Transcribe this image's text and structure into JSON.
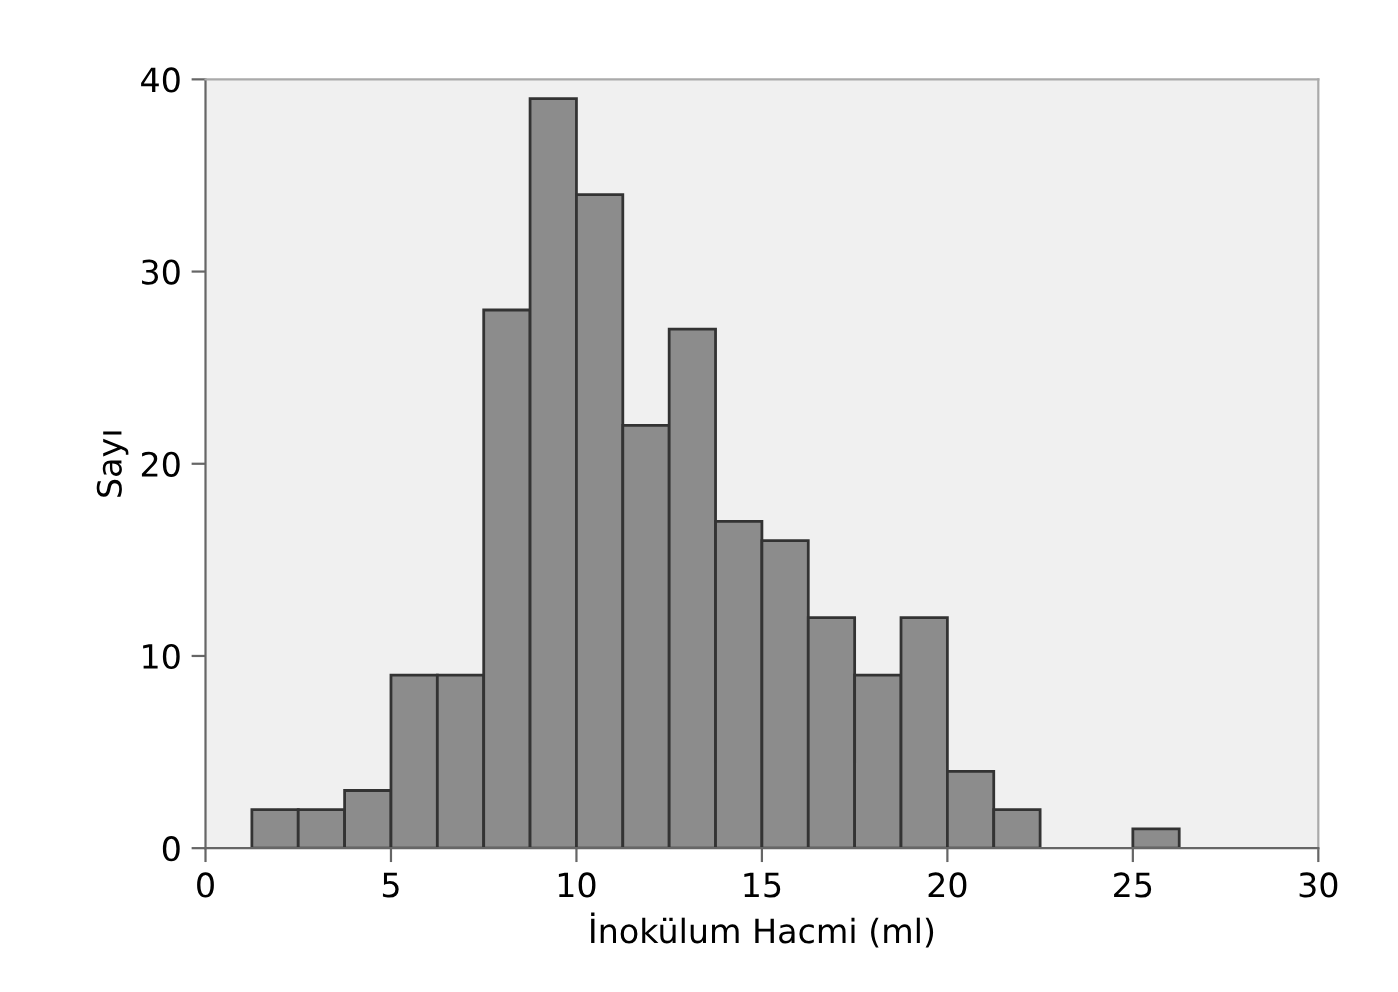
{
  "chart_data": {
    "type": "histogram",
    "xlabel": "İnokülum Hacmi (ml)",
    "ylabel": "Sayı",
    "bins": [
      1.25,
      2.5,
      3.75,
      5,
      6.25,
      7.5,
      8.75,
      10,
      11.25,
      12.5,
      13.75,
      15,
      16.25,
      17.5,
      18.75,
      20,
      21.25,
      22.5,
      23.75,
      25,
      26.25
    ],
    "values": [
      2,
      2,
      3,
      9,
      9,
      28,
      39,
      34,
      22,
      27,
      17,
      16,
      12,
      9,
      12,
      4,
      2,
      0,
      0,
      1
    ],
    "color": "#8c8c8c",
    "xlim": [
      0,
      30
    ],
    "xticks": [
      0,
      5,
      10,
      15,
      20,
      25,
      30
    ],
    "ylim": [
      0,
      40
    ],
    "yticks": [
      0,
      10,
      20,
      30,
      40
    ],
    "grid": false
  }
}
